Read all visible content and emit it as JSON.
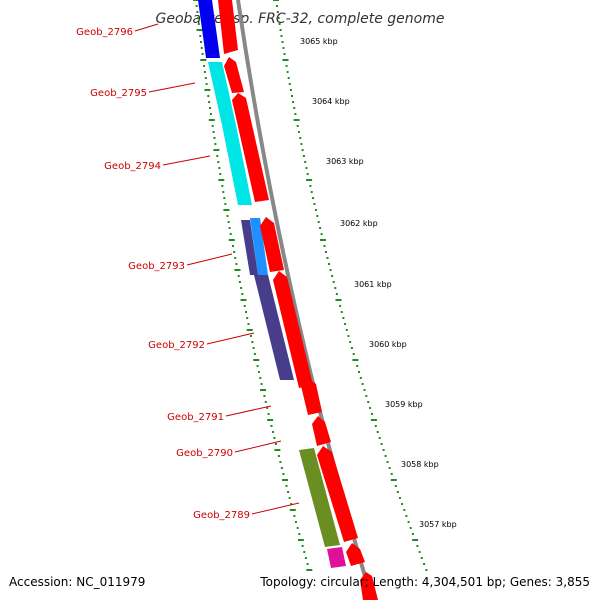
{
  "title": "Geobacter sp. FRC-32, complete genome",
  "footer": {
    "accession": "Accession: NC_011979",
    "summary": "Topology: circular; Length: 4,304,501 bp; Genes: 3,855"
  },
  "colors": {
    "forward_strand": "#ff0000",
    "backbone": "#888888",
    "tick": "#228b22",
    "label": "#cc0000"
  },
  "genes": [
    {
      "name": "Geob_2796",
      "color": "#0000ee"
    },
    {
      "name": "Geob_2795",
      "color": "#00e5e5"
    },
    {
      "name": "Geob_2794",
      "color": "#00e5e5"
    },
    {
      "name": "Geob_2793",
      "color": "#1e90ff"
    },
    {
      "name": "Geob_2792",
      "color": "#483d8b"
    },
    {
      "name": "Geob_2791",
      "color": "#ff0000"
    },
    {
      "name": "Geob_2790",
      "color": "#ff0000"
    },
    {
      "name": "Geob_2789",
      "color": "#6b8e23"
    }
  ],
  "scale_labels": [
    "3065 kbp",
    "3064 kbp",
    "3063 kbp",
    "3062 kbp",
    "3061 kbp",
    "3060 kbp",
    "3059 kbp",
    "3058 kbp",
    "3057 kbp"
  ]
}
